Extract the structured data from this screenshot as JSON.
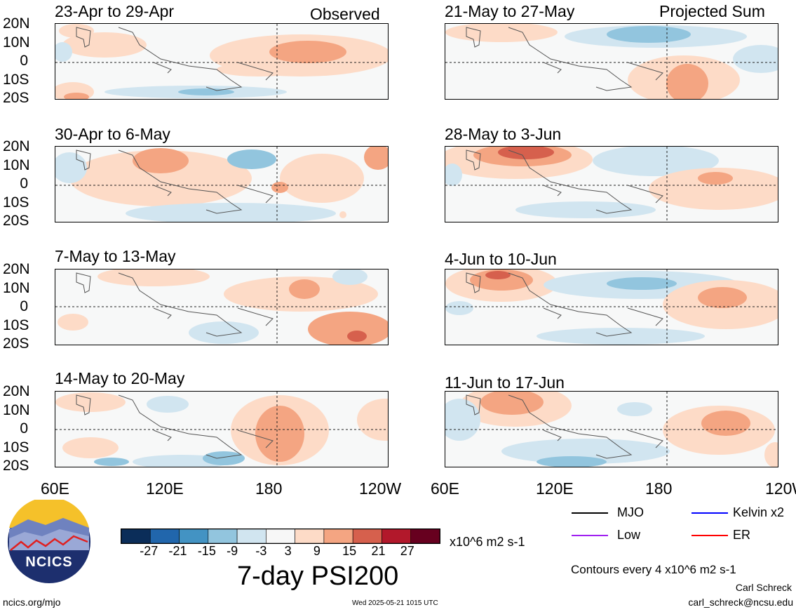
{
  "panels": [
    {
      "title": "23-Apr to 29-Apr",
      "label": "Observed"
    },
    {
      "title": "30-Apr to 6-May",
      "label": ""
    },
    {
      "title": "7-May to 13-May",
      "label": ""
    },
    {
      "title": "14-May to 20-May",
      "label": ""
    },
    {
      "title": "21-May to 27-May",
      "label": "Projected Sum"
    },
    {
      "title": "28-May to 3-Jun",
      "label": ""
    },
    {
      "title": "4-Jun to 10-Jun",
      "label": ""
    },
    {
      "title": "11-Jun to 17-Jun",
      "label": ""
    }
  ],
  "y_ticks": [
    "20N",
    "10N",
    "0",
    "10S",
    "20S"
  ],
  "x_ticks": [
    "60E",
    "120E",
    "180",
    "120W"
  ],
  "colorbar": {
    "colors": [
      "#0b2d59",
      "#2166ac",
      "#4393c3",
      "#92c5de",
      "#d1e5f0",
      "#f7f7f7",
      "#fddbc7",
      "#f4a582",
      "#d6604d",
      "#b2182b",
      "#67001f"
    ],
    "labels": [
      "-27",
      "-21",
      "-15",
      "-9",
      "-3",
      "3",
      "9",
      "15",
      "21",
      "27"
    ],
    "units": "x10^6 m2 s-1"
  },
  "main_title": "7-day PSI200",
  "legend": [
    {
      "name": "MJO",
      "color": "#000000"
    },
    {
      "name": "Kelvin x2",
      "color": "#0000ff"
    },
    {
      "name": "Low",
      "color": "#a020f0"
    },
    {
      "name": "ER",
      "color": "#ff0000"
    }
  ],
  "contours_note": "Contours every 4 x10^6 m2 s-1",
  "author": "Carl Schreck",
  "email": "carl_schreck@ncsu.edu",
  "site": "ncics.org/mjo",
  "timestamp": "Wed 2025-05-21 1015 UTC",
  "logo_text": "NCICS"
}
